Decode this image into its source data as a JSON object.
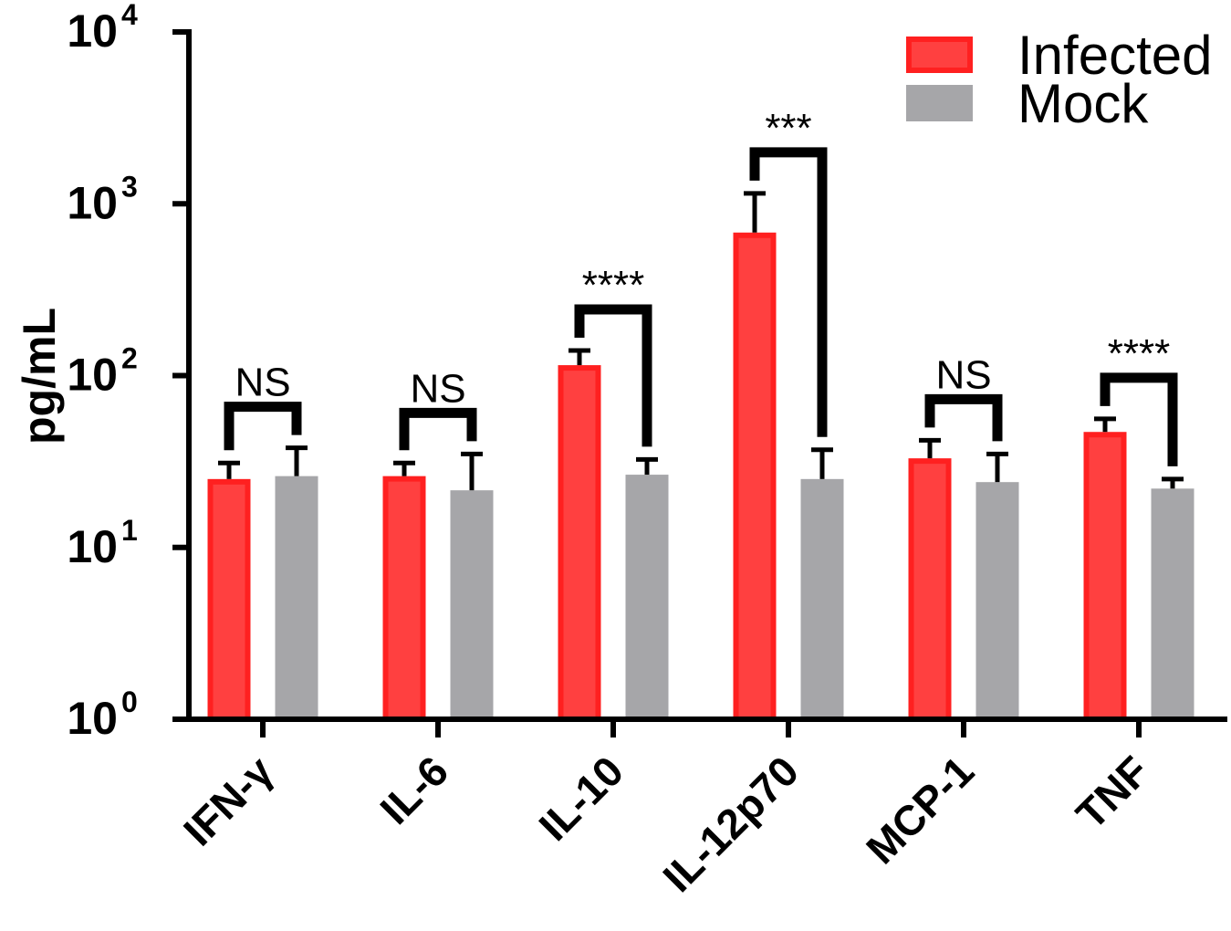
{
  "chart_data": {
    "type": "bar",
    "ylabel": "pg/mL",
    "yscale": "log",
    "ylim": [
      1,
      10000
    ],
    "yticks": [
      {
        "value": 1,
        "base": "10",
        "exp": "0"
      },
      {
        "value": 10,
        "base": "10",
        "exp": "1"
      },
      {
        "value": 100,
        "base": "10",
        "exp": "2"
      },
      {
        "value": 1000,
        "base": "10",
        "exp": "3"
      },
      {
        "value": 10000,
        "base": "10",
        "exp": "4"
      }
    ],
    "categories": [
      "IFN-γ",
      "IL-6",
      "IL-10",
      "IL-12p70",
      "MCP-1",
      "TNF"
    ],
    "series": [
      {
        "name": "Infected",
        "color": "#ff4040",
        "edge": "#ff2020",
        "values": [
          25,
          26,
          115,
          680,
          33,
          47
        ],
        "error_upper": [
          31,
          31,
          140,
          1150,
          42,
          56
        ]
      },
      {
        "name": "Mock",
        "color": "#a6a6a9",
        "edge": "#a6a6a9",
        "values": [
          26,
          21.5,
          26.5,
          25,
          24,
          22
        ],
        "error_upper": [
          38,
          35,
          32.5,
          37,
          35,
          25
        ]
      }
    ],
    "significance": [
      "NS",
      "NS",
      "****",
      "***",
      "NS",
      "****"
    ],
    "legend_position": "top-right",
    "grid": false
  }
}
